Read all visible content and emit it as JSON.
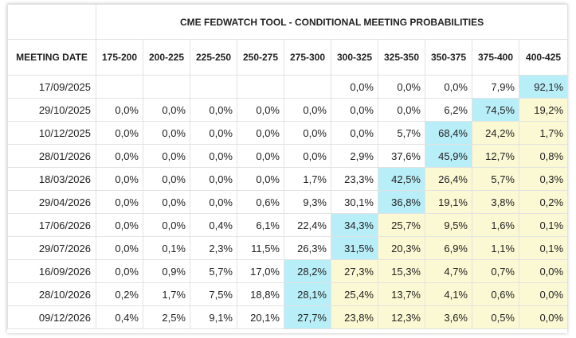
{
  "title": "CME FEDWATCH TOOL - CONDITIONAL MEETING PROBABILITIES",
  "date_header": "MEETING DATE",
  "columns": [
    "175-200",
    "200-225",
    "225-250",
    "250-275",
    "275-300",
    "300-325",
    "325-350",
    "350-375",
    "375-400",
    "400-425"
  ],
  "colors": {
    "highlight_max": "#b8eef8",
    "highlight_above": "#fbf9d3",
    "border": "#e2e2e2",
    "text": "#222222"
  },
  "rows": [
    {
      "date": "17/09/2025",
      "values": [
        "",
        "",
        "",
        "",
        "",
        "0,0%",
        "0,0%",
        "0,0%",
        "7,9%",
        "92,1%"
      ],
      "max": 9
    },
    {
      "date": "29/10/2025",
      "values": [
        "0,0%",
        "0,0%",
        "0,0%",
        "0,0%",
        "0,0%",
        "0,0%",
        "0,0%",
        "6,2%",
        "74,5%",
        "19,2%"
      ],
      "max": 8
    },
    {
      "date": "10/12/2025",
      "values": [
        "0,0%",
        "0,0%",
        "0,0%",
        "0,0%",
        "0,0%",
        "0,0%",
        "5,7%",
        "68,4%",
        "24,2%",
        "1,7%"
      ],
      "max": 7
    },
    {
      "date": "28/01/2026",
      "values": [
        "0,0%",
        "0,0%",
        "0,0%",
        "0,0%",
        "0,0%",
        "2,9%",
        "37,6%",
        "45,9%",
        "12,7%",
        "0,8%"
      ],
      "max": 7
    },
    {
      "date": "18/03/2026",
      "values": [
        "0,0%",
        "0,0%",
        "0,0%",
        "0,0%",
        "1,7%",
        "23,3%",
        "42,5%",
        "26,4%",
        "5,7%",
        "0,3%"
      ],
      "max": 6
    },
    {
      "date": "29/04/2026",
      "values": [
        "0,0%",
        "0,0%",
        "0,0%",
        "0,6%",
        "9,3%",
        "30,1%",
        "36,8%",
        "19,1%",
        "3,8%",
        "0,2%"
      ],
      "max": 6
    },
    {
      "date": "17/06/2026",
      "values": [
        "0,0%",
        "0,0%",
        "0,4%",
        "6,1%",
        "22,4%",
        "34,3%",
        "25,7%",
        "9,5%",
        "1,6%",
        "0,1%"
      ],
      "max": 5
    },
    {
      "date": "29/07/2026",
      "values": [
        "0,0%",
        "0,1%",
        "2,3%",
        "11,5%",
        "26,3%",
        "31,5%",
        "20,3%",
        "6,9%",
        "1,1%",
        "0,1%"
      ],
      "max": 5
    },
    {
      "date": "16/09/2026",
      "values": [
        "0,0%",
        "0,9%",
        "5,7%",
        "17,0%",
        "28,2%",
        "27,3%",
        "15,3%",
        "4,7%",
        "0,7%",
        "0,0%"
      ],
      "max": 4
    },
    {
      "date": "28/10/2026",
      "values": [
        "0,2%",
        "1,7%",
        "7,5%",
        "18,8%",
        "28,1%",
        "25,4%",
        "13,7%",
        "4,1%",
        "0,6%",
        "0,0%"
      ],
      "max": 4
    },
    {
      "date": "09/12/2026",
      "values": [
        "0,4%",
        "2,5%",
        "9,1%",
        "20,1%",
        "27,7%",
        "23,8%",
        "12,3%",
        "3,6%",
        "0,5%",
        "0,0%"
      ],
      "max": 4
    }
  ]
}
